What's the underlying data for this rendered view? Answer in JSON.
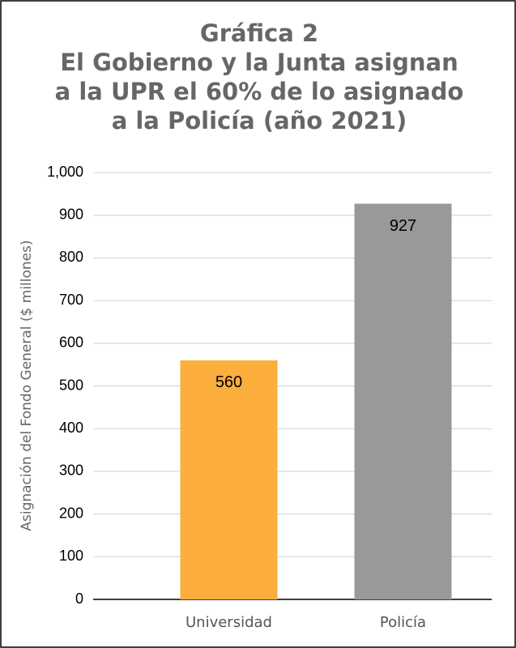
{
  "chart_data": {
    "type": "bar",
    "title": [
      "Gráfica 2",
      "El Gobierno y la Junta asignan",
      "a la UPR el 60% de lo asignado",
      "a la Policía (año 2021)"
    ],
    "y_label": "Asignación del Fondo General ($ millones)",
    "categories": [
      "Universidad",
      "Policía"
    ],
    "values": [
      560,
      927
    ],
    "colors": [
      "#fbae3c",
      "#999999"
    ],
    "ylim": [
      0,
      1000
    ],
    "yticks": [
      0,
      100,
      200,
      300,
      400,
      500,
      600,
      700,
      800,
      900,
      {
        "value": 1000,
        "label": "1,000"
      }
    ],
    "grid": true
  }
}
